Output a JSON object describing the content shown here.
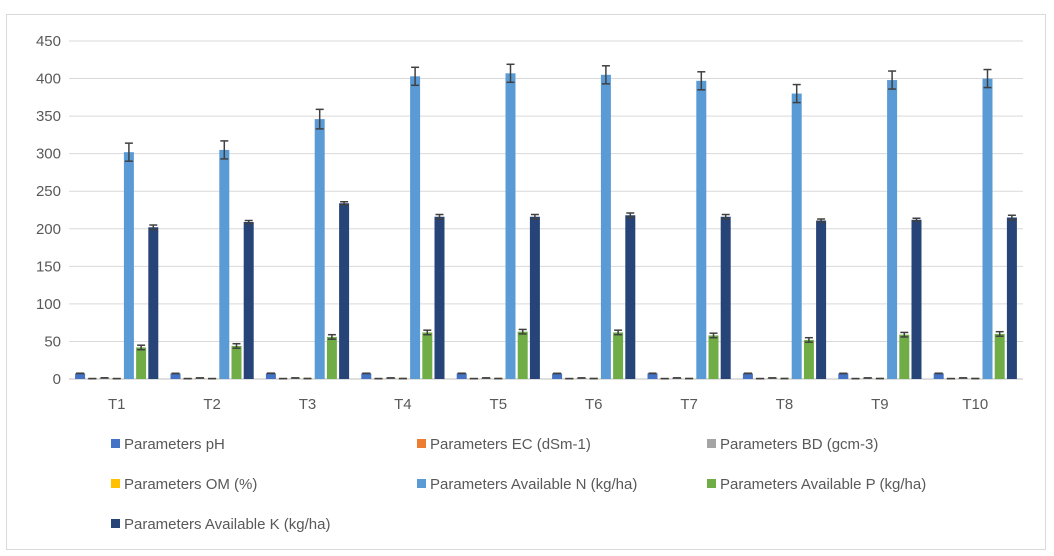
{
  "chart_data": {
    "type": "bar",
    "title": "",
    "xlabel": "",
    "ylabel": "",
    "ylim": [
      0,
      450
    ],
    "yticks": [
      0,
      50,
      100,
      150,
      200,
      250,
      300,
      350,
      400,
      450
    ],
    "grid": true,
    "legend_position": "bottom",
    "error_bars": true,
    "categories": [
      "T1",
      "T2",
      "T3",
      "T4",
      "T5",
      "T6",
      "T7",
      "T8",
      "T9",
      "T10"
    ],
    "series": [
      {
        "name": "Parameters pH",
        "color": "#4472c4",
        "values": [
          7.5,
          7.4,
          7.6,
          7.5,
          7.5,
          7.4,
          7.5,
          7.5,
          7.4,
          7.5
        ],
        "errors": [
          0.2,
          0.2,
          0.2,
          0.2,
          0.2,
          0.2,
          0.2,
          0.2,
          0.2,
          0.2
        ]
      },
      {
        "name": "Parameters EC  (dSm-1)",
        "color": "#ed7d31",
        "values": [
          0.5,
          0.5,
          0.5,
          0.5,
          0.5,
          0.5,
          0.5,
          0.5,
          0.5,
          0.5
        ],
        "errors": [
          0.05,
          0.05,
          0.05,
          0.05,
          0.05,
          0.05,
          0.05,
          0.05,
          0.05,
          0.05
        ]
      },
      {
        "name": "Parameters BD  (gcm-3)",
        "color": "#a5a5a5",
        "values": [
          1.5,
          1.4,
          1.4,
          1.4,
          1.4,
          1.4,
          1.4,
          1.4,
          1.4,
          1.4
        ],
        "errors": [
          0.05,
          0.05,
          0.05,
          0.05,
          0.05,
          0.05,
          0.05,
          0.05,
          0.05,
          0.05
        ]
      },
      {
        "name": "Parameters OM  (%)",
        "color": "#ffc000",
        "values": [
          0.5,
          0.5,
          0.6,
          0.6,
          0.6,
          0.6,
          0.6,
          0.6,
          0.6,
          0.6
        ],
        "errors": [
          0.05,
          0.05,
          0.05,
          0.05,
          0.05,
          0.05,
          0.05,
          0.05,
          0.05,
          0.05
        ]
      },
      {
        "name": "Parameters Available N (kg/ha)",
        "color": "#5b9bd5",
        "values": [
          302,
          305,
          346,
          403,
          407,
          405,
          397,
          380,
          398,
          400
        ],
        "errors": [
          12,
          12,
          13,
          12,
          12,
          12,
          12,
          12,
          12,
          12
        ]
      },
      {
        "name": "Parameters Available P (kg/ha)",
        "color": "#70ad47",
        "values": [
          42,
          44,
          56,
          62,
          63,
          62,
          58,
          52,
          59,
          60
        ],
        "errors": [
          3,
          3,
          3,
          3,
          3,
          3,
          3,
          3,
          3,
          3
        ]
      },
      {
        "name": "Parameters Available K (kg/ha)",
        "color": "#264478",
        "values": [
          202,
          209,
          234,
          216,
          216,
          218,
          216,
          211,
          212,
          215
        ],
        "errors": [
          3,
          2,
          2,
          3,
          3,
          3,
          3,
          2,
          2,
          3
        ]
      }
    ]
  }
}
